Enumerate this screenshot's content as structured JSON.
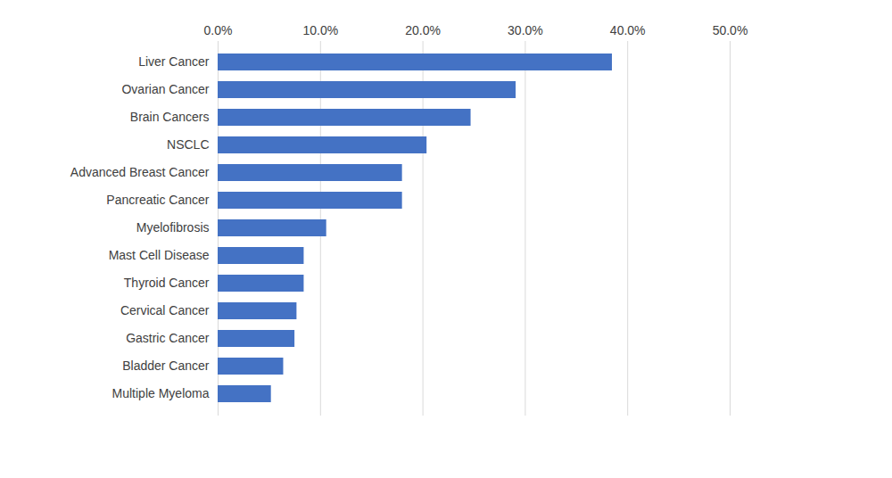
{
  "chart_data": {
    "type": "bar",
    "orientation": "horizontal",
    "categories": [
      "Liver Cancer",
      "Ovarian Cancer",
      "Brain Cancers",
      "NSCLC",
      "Advanced Breast Cancer",
      "Pancreatic Cancer",
      "Myelofibrosis",
      "Mast Cell Disease",
      "Thyroid Cancer",
      "Cervical Cancer",
      "Gastric Cancer",
      "Bladder Cancer",
      "Multiple Myeloma"
    ],
    "values": [
      38.5,
      29.1,
      24.7,
      20.4,
      18.0,
      18.0,
      10.6,
      8.4,
      8.4,
      7.7,
      7.5,
      6.4,
      5.2
    ],
    "color": "#4472c4",
    "xlim": [
      0,
      50
    ],
    "xticks": [
      {
        "value": 0,
        "label": "0.0%"
      },
      {
        "value": 10,
        "label": "10.0%"
      },
      {
        "value": 20,
        "label": "20.0%"
      },
      {
        "value": 30,
        "label": "30.0%"
      },
      {
        "value": 40,
        "label": "40.0%"
      },
      {
        "value": 50,
        "label": "50.0%"
      }
    ],
    "grid": true
  }
}
